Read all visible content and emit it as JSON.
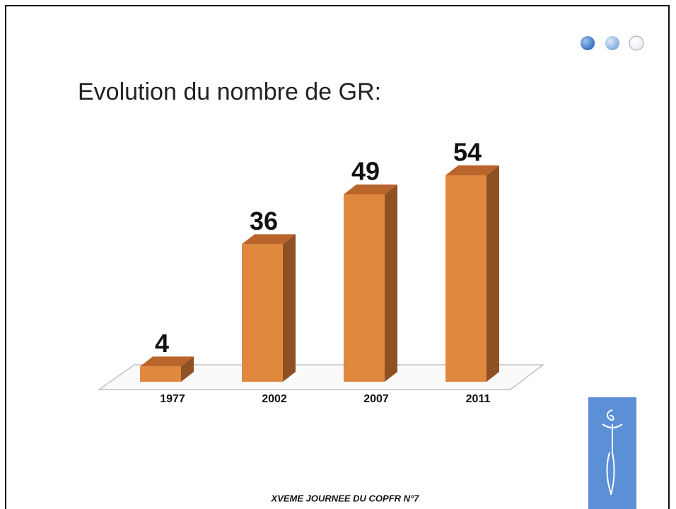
{
  "chart_data": {
    "type": "bar",
    "title": "Evolution du nombre de GR:",
    "categories": [
      "1977",
      "2002",
      "2007",
      "2011"
    ],
    "values": [
      4,
      36,
      49,
      54
    ],
    "color": "#e0883e"
  },
  "footer": "XVEME JOURNEE DU COPFR  N°7"
}
